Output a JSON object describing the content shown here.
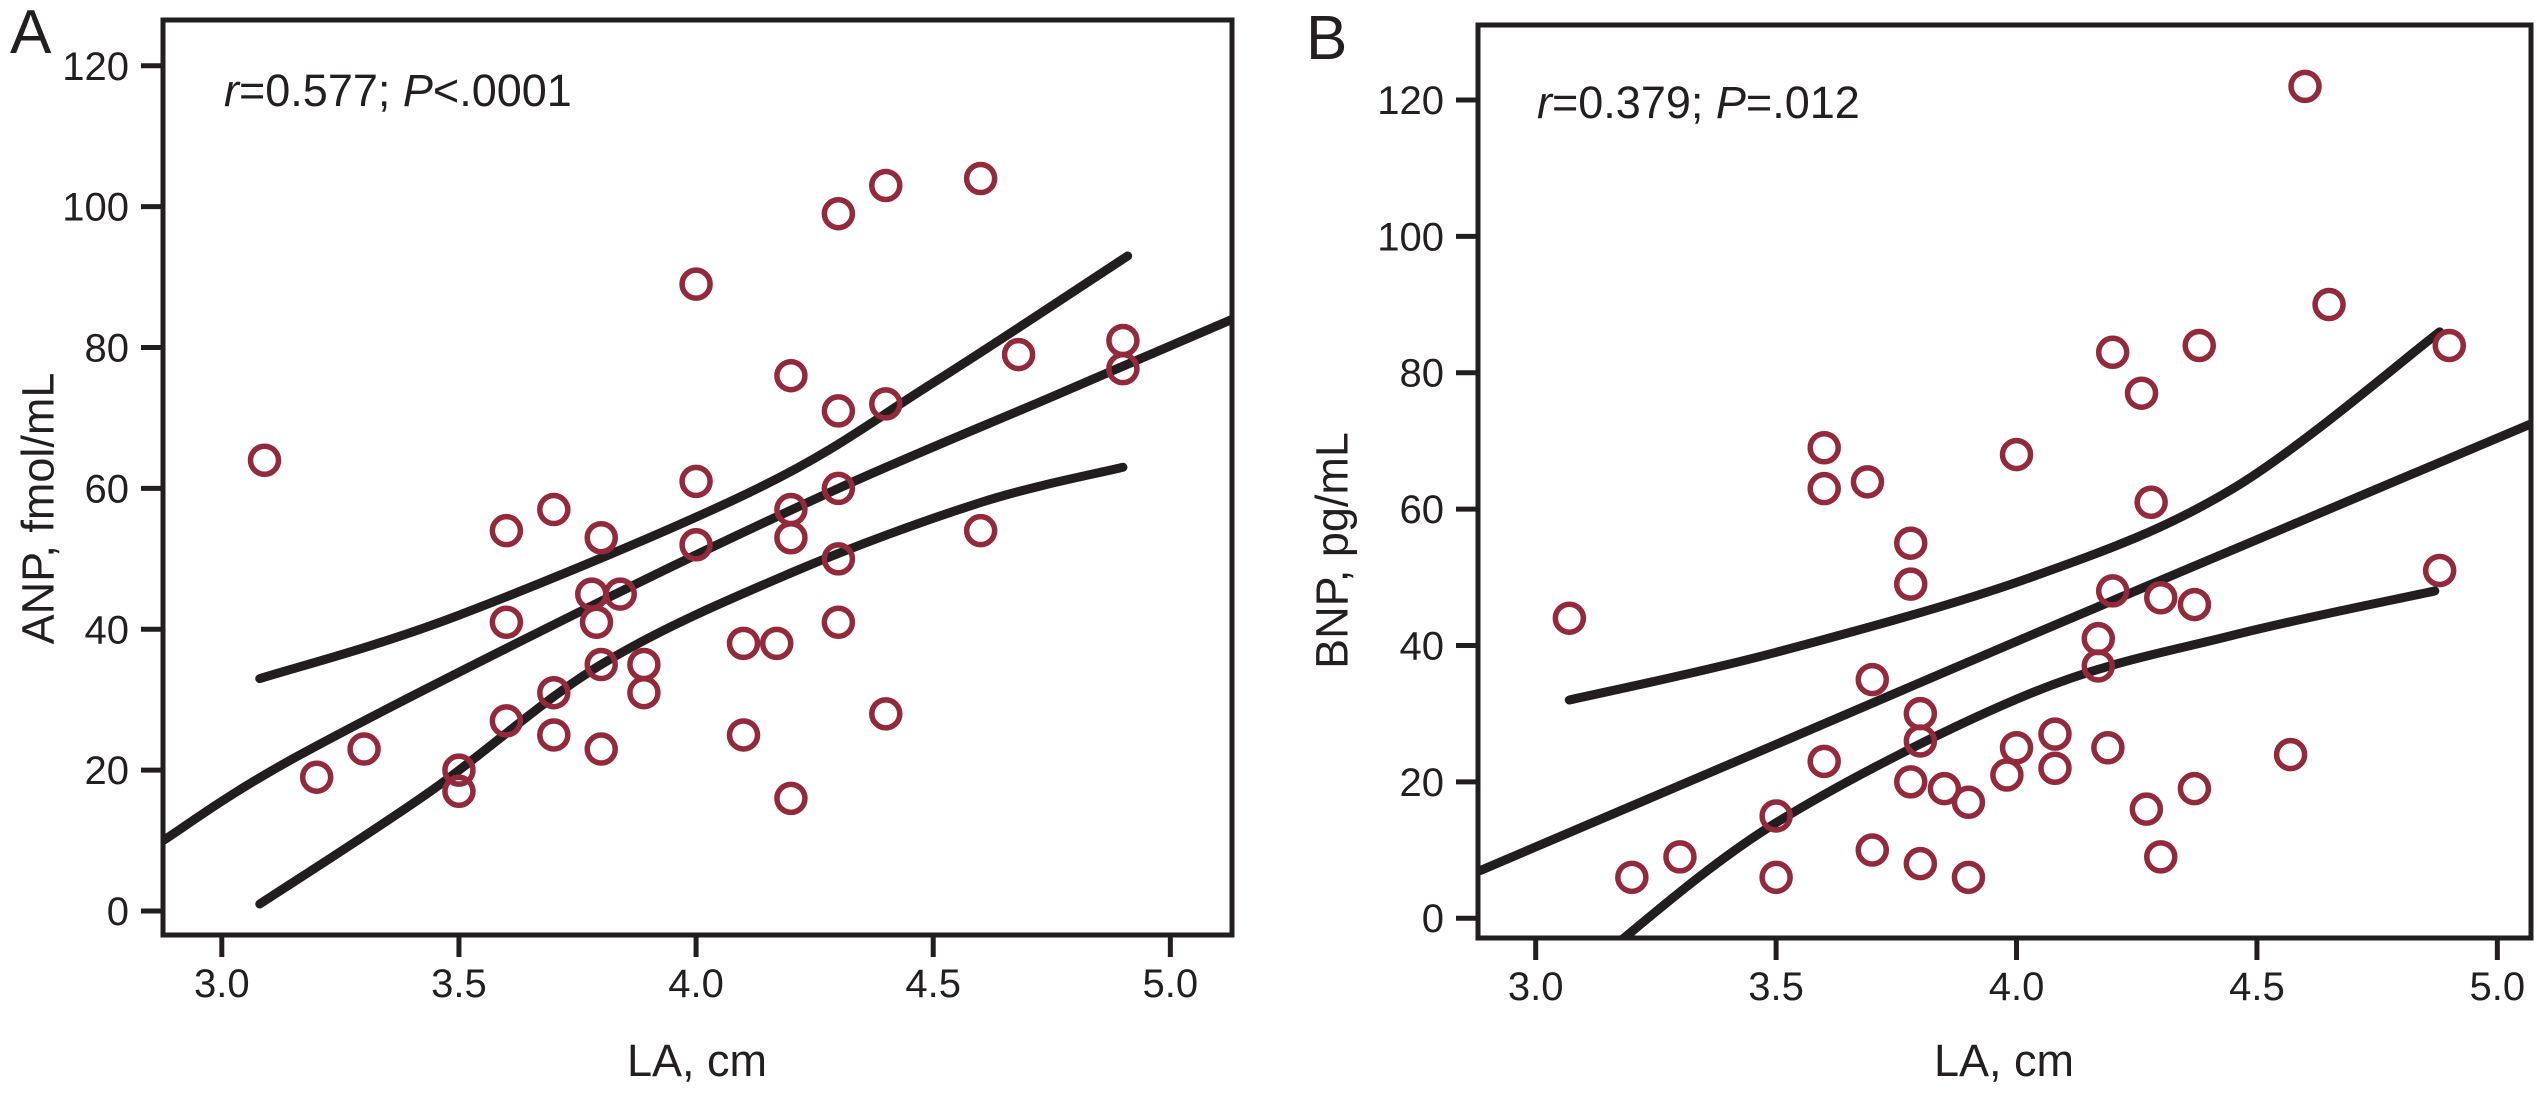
{
  "figure_type": "two-panel correlation scatter plot",
  "colors": {
    "background": "#ffffff",
    "point_stroke": "#93293a",
    "curve": "#221e1f",
    "axis": "#221e1f",
    "text": "#231f20"
  },
  "chart_data": [
    {
      "type": "scatter",
      "panel": "A",
      "annotation": "r=0.577; P<.0001",
      "annotation_parts": [
        "r",
        "=0.577; ",
        "P",
        "<.0001"
      ],
      "xlabel": "LA, cm",
      "ylabel": "ANP, fmol/mL",
      "xticks": [
        3.0,
        3.5,
        4.0,
        4.5,
        5.0
      ],
      "xtick_labels": [
        "3.0",
        "3.5",
        "4.0",
        "4.5",
        "5.0"
      ],
      "yticks": [
        0,
        20,
        40,
        60,
        80,
        100,
        120
      ],
      "ytick_labels": [
        "0",
        "20",
        "40",
        "60",
        "80",
        "100",
        "120"
      ],
      "xlim": [
        2.876,
        5.13
      ],
      "ylim": [
        -3.4,
        126.5
      ],
      "legend": "none",
      "grid": false,
      "points": [
        [
          3.09,
          64
        ],
        [
          3.2,
          19
        ],
        [
          3.3,
          23
        ],
        [
          3.5,
          20
        ],
        [
          3.5,
          17
        ],
        [
          3.6,
          27
        ],
        [
          3.7,
          31
        ],
        [
          3.7,
          25
        ],
        [
          3.6,
          41
        ],
        [
          3.6,
          54
        ],
        [
          3.7,
          57
        ],
        [
          3.8,
          53
        ],
        [
          3.78,
          45
        ],
        [
          3.84,
          45
        ],
        [
          3.79,
          41
        ],
        [
          3.8,
          35
        ],
        [
          3.89,
          35
        ],
        [
          3.89,
          31
        ],
        [
          3.8,
          23
        ],
        [
          4.0,
          89
        ],
        [
          4.0,
          61
        ],
        [
          4.0,
          52
        ],
        [
          4.1,
          38
        ],
        [
          4.17,
          38
        ],
        [
          4.1,
          25
        ],
        [
          4.2,
          76
        ],
        [
          4.2,
          57
        ],
        [
          4.2,
          53
        ],
        [
          4.2,
          16
        ],
        [
          4.3,
          99
        ],
        [
          4.3,
          71
        ],
        [
          4.3,
          60
        ],
        [
          4.3,
          50
        ],
        [
          4.3,
          41
        ],
        [
          4.4,
          103
        ],
        [
          4.4,
          72
        ],
        [
          4.4,
          28
        ],
        [
          4.6,
          104
        ],
        [
          4.68,
          79
        ],
        [
          4.6,
          54
        ],
        [
          4.9,
          81
        ],
        [
          4.9,
          77
        ]
      ],
      "curves": {
        "mean": [
          [
            2.876,
            10
          ],
          [
            3.16,
            22
          ],
          [
            3.8,
            44
          ],
          [
            4.3,
            60
          ],
          [
            4.75,
            73
          ],
          [
            5.13,
            84
          ]
        ],
        "upper_ci": [
          [
            3.08,
            33
          ],
          [
            3.5,
            42
          ],
          [
            4.13,
            60
          ],
          [
            4.5,
            75
          ],
          [
            4.91,
            93
          ]
        ],
        "lower_ci": [
          [
            3.08,
            1
          ],
          [
            3.44,
            17
          ],
          [
            3.8,
            35
          ],
          [
            4.2,
            48
          ],
          [
            4.6,
            58
          ],
          [
            4.9,
            63
          ]
        ]
      }
    },
    {
      "type": "scatter",
      "panel": "B",
      "annotation": "r=0.379; P=.012",
      "annotation_parts": [
        "r",
        "=0.379; ",
        "P",
        "=.012"
      ],
      "xlabel": "LA, cm",
      "ylabel": "BNP, pg/mL",
      "xticks": [
        3.0,
        3.5,
        4.0,
        4.5,
        5.0
      ],
      "xtick_labels": [
        "3.0",
        "3.5",
        "4.0",
        "4.5",
        "5.0"
      ],
      "yticks": [
        0,
        20,
        40,
        60,
        80,
        100,
        120
      ],
      "ytick_labels": [
        "0",
        "20",
        "40",
        "60",
        "80",
        "100",
        "120"
      ],
      "xlim": [
        2.88,
        5.07
      ],
      "ylim": [
        -2.9,
        131
      ],
      "legend": "none",
      "grid": false,
      "points": [
        [
          3.07,
          44
        ],
        [
          3.2,
          6
        ],
        [
          3.3,
          9
        ],
        [
          3.5,
          15
        ],
        [
          3.5,
          6
        ],
        [
          3.6,
          69
        ],
        [
          3.6,
          63
        ],
        [
          3.6,
          23
        ],
        [
          3.69,
          64
        ],
        [
          3.7,
          35
        ],
        [
          3.7,
          10
        ],
        [
          3.78,
          55
        ],
        [
          3.78,
          49
        ],
        [
          3.8,
          30
        ],
        [
          3.8,
          26
        ],
        [
          3.8,
          8
        ],
        [
          3.78,
          20
        ],
        [
          3.85,
          19
        ],
        [
          3.9,
          17
        ],
        [
          3.9,
          6
        ],
        [
          3.98,
          21
        ],
        [
          4.0,
          25
        ],
        [
          4.0,
          68
        ],
        [
          4.08,
          27
        ],
        [
          4.08,
          22
        ],
        [
          4.17,
          41
        ],
        [
          4.17,
          37
        ],
        [
          4.19,
          25
        ],
        [
          4.2,
          83
        ],
        [
          4.2,
          48
        ],
        [
          4.26,
          77
        ],
        [
          4.28,
          61
        ],
        [
          4.3,
          47
        ],
        [
          4.37,
          46
        ],
        [
          4.27,
          16
        ],
        [
          4.37,
          19
        ],
        [
          4.3,
          9
        ],
        [
          4.38,
          84
        ],
        [
          4.57,
          24
        ],
        [
          4.6,
          122
        ],
        [
          4.65,
          90
        ],
        [
          4.9,
          84
        ],
        [
          4.88,
          51
        ]
      ],
      "curves": {
        "mean": [
          [
            2.885,
            7
          ],
          [
            3.5,
            25.5
          ],
          [
            4.03,
            41.5
          ],
          [
            4.6,
            58.5
          ],
          [
            5.07,
            72.5
          ]
        ],
        "upper_ci": [
          [
            3.07,
            32
          ],
          [
            3.5,
            39
          ],
          [
            4.03,
            50
          ],
          [
            4.45,
            63
          ],
          [
            4.88,
            86
          ]
        ],
        "lower_ci": [
          [
            3.13,
            -6
          ],
          [
            3.5,
            14
          ],
          [
            4.03,
            33
          ],
          [
            4.45,
            41.5
          ],
          [
            4.87,
            48
          ]
        ]
      }
    }
  ]
}
